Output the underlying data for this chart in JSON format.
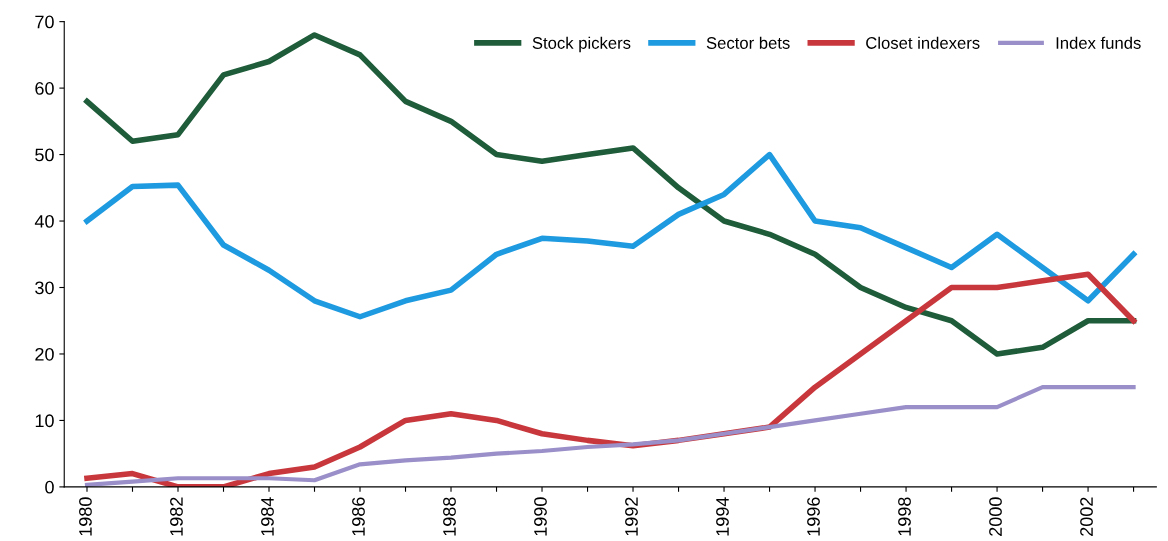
{
  "chart_data": {
    "type": "line",
    "categories": [
      "1980",
      null,
      "1982",
      null,
      "1984",
      null,
      "1986",
      null,
      "1988",
      null,
      "1990",
      null,
      "1992",
      null,
      "1994",
      null,
      "1996",
      null,
      "1998",
      null,
      "2000",
      null,
      "2002",
      null
    ],
    "series": [
      {
        "name": "Stock pickers",
        "color": "#1e5c3a",
        "values": [
          58,
          52,
          53,
          62,
          64,
          68,
          65,
          58,
          55,
          50,
          49,
          50,
          51,
          45,
          40,
          38,
          35,
          30,
          27,
          25,
          20,
          21,
          25,
          25
        ]
      },
      {
        "name": "Sector bets",
        "color": "#1e9ae0",
        "values": [
          40,
          45.2,
          45.4,
          36.4,
          32.6,
          28,
          25.6,
          28,
          29.6,
          35,
          37.4,
          37,
          36.2,
          41,
          44,
          50,
          40,
          39,
          36,
          33,
          38,
          33,
          28,
          35
        ]
      },
      {
        "name": "Closet indexers",
        "color": "#c8373c",
        "values": [
          1.3,
          2,
          0,
          0,
          2,
          3,
          6,
          10,
          11,
          10,
          8,
          7,
          6.2,
          7,
          8,
          9,
          15,
          20,
          25,
          30,
          30,
          31,
          32,
          25
        ]
      },
      {
        "name": "Index funds",
        "color": "#9a8fc8",
        "values": [
          0.3,
          0.8,
          1.3,
          1.3,
          1.3,
          1,
          3.4,
          4,
          4.4,
          5,
          5.4,
          6,
          6.4,
          7,
          8,
          9,
          10,
          11,
          12,
          12,
          12,
          15,
          15,
          15
        ]
      }
    ],
    "ylim": [
      0,
      70
    ],
    "yticks": [
      0,
      10,
      20,
      30,
      40,
      50,
      60,
      70
    ],
    "grid": false,
    "legend": "top right",
    "marker": "none",
    "line_style": "solid"
  }
}
